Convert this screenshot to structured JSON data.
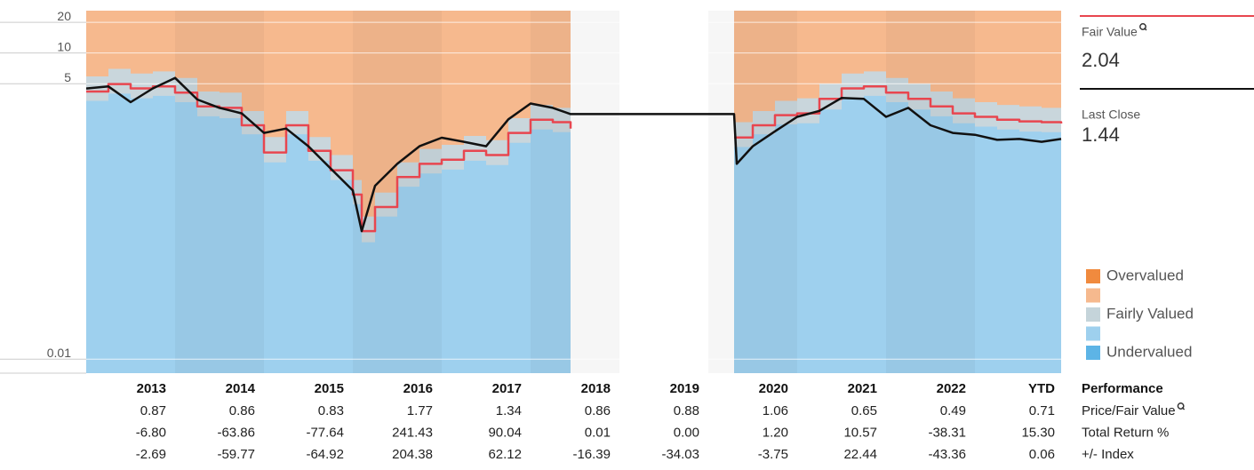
{
  "chart_data": {
    "type": "line",
    "log_scale": true,
    "grid": true,
    "x": [
      2013,
      2013.25,
      2013.5,
      2013.75,
      2014,
      2014.25,
      2014.5,
      2014.75,
      2015,
      2015.25,
      2015.5,
      2015.75,
      2016,
      2016.1,
      2016.25,
      2016.5,
      2016.75,
      2017,
      2017.25,
      2017.5,
      2017.75,
      2018,
      2018.25,
      2018.45,
      2019.4,
      2020.29,
      2020.32,
      2020.5,
      2020.75,
      2021,
      2021.25,
      2021.5,
      2021.75,
      2022,
      2022.25,
      2022.5,
      2022.75,
      2023,
      2023.25,
      2023.5,
      2023.75,
      2023.97
    ],
    "xlim": [
      2013,
      2024
    ],
    "ylim": [
      0.0073,
      26
    ],
    "yticks": [
      0.01,
      5,
      10,
      20
    ],
    "series": [
      {
        "name": "Fair Value",
        "color": "#e8464f",
        "step": true,
        "values": [
          4.2,
          4.97,
          4.5,
          4.7,
          4.1,
          3.0,
          2.9,
          1.96,
          1.06,
          1.96,
          1.1,
          0.71,
          0.41,
          0.18,
          0.31,
          0.61,
          0.82,
          0.9,
          1.1,
          1.0,
          1.65,
          2.22,
          2.1,
          1.82,
          null,
          1.49,
          1.49,
          1.96,
          2.46,
          2.56,
          3.55,
          4.5,
          4.7,
          4.1,
          3.55,
          3.0,
          2.56,
          2.37,
          2.22,
          2.14,
          2.1,
          2.04
        ]
      },
      {
        "name": "Last Close",
        "color": "#111111",
        "step": false,
        "values": [
          4.49,
          4.7,
          3.3,
          4.5,
          5.7,
          3.5,
          2.9,
          2.56,
          1.65,
          1.82,
          1.22,
          0.74,
          0.45,
          0.18,
          0.5,
          0.82,
          1.22,
          1.48,
          1.35,
          1.22,
          2.24,
          3.2,
          2.9,
          2.52,
          2.52,
          2.52,
          0.82,
          1.22,
          1.71,
          2.37,
          2.71,
          3.63,
          3.55,
          2.37,
          2.9,
          1.96,
          1.65,
          1.58,
          1.41,
          1.44,
          1.35,
          1.44
        ]
      }
    ],
    "overvalued_color": "#f6b98e",
    "bands": [
      {
        "color": "#c9d6dc",
        "values": [
          5.9,
          7.0,
          6.3,
          6.6,
          5.7,
          4.2,
          4.1,
          2.7,
          1.5,
          2.7,
          1.5,
          1.0,
          0.57,
          0.25,
          0.43,
          0.85,
          1.15,
          1.26,
          1.54,
          1.4,
          2.3,
          3.1,
          2.9,
          2.5,
          null,
          2.1,
          2.1,
          2.7,
          3.4,
          3.6,
          5.0,
          6.3,
          6.6,
          5.7,
          5.0,
          4.2,
          3.6,
          3.3,
          3.1,
          3.0,
          2.9,
          2.9
        ]
      },
      {
        "color": "#9ed0ee",
        "values": [
          3.4,
          4.0,
          3.6,
          3.8,
          3.3,
          2.4,
          2.3,
          1.6,
          0.85,
          1.6,
          0.88,
          0.57,
          0.33,
          0.14,
          0.25,
          0.49,
          0.66,
          0.72,
          0.88,
          0.8,
          1.32,
          1.78,
          1.68,
          1.46,
          null,
          1.2,
          1.2,
          1.6,
          2.0,
          2.05,
          2.8,
          3.6,
          3.8,
          3.3,
          2.8,
          2.4,
          2.05,
          1.9,
          1.78,
          1.7,
          1.68,
          1.63
        ]
      }
    ],
    "legend": [
      {
        "label": "Overvalued",
        "color": "#f08a3e"
      },
      {
        "label": null,
        "color": "#f6b98e"
      },
      {
        "label": "Fairly Valued",
        "color": "#c5d4da"
      },
      {
        "label": null,
        "color": "#9ed0ee"
      },
      {
        "label": "Undervalued",
        "color": "#5db4e6"
      }
    ]
  },
  "side_panel": {
    "fair_value": "2.04",
    "last_close": "1.44"
  },
  "table": {
    "header": "Performance",
    "columns": [
      "2013",
      "2014",
      "2015",
      "2016",
      "2017",
      "2018",
      "2019",
      "2020",
      "2021",
      "2022",
      "YTD"
    ],
    "rows": [
      {
        "label": "Price/Fair Value",
        "values": [
          "0.87",
          "0.86",
          "0.83",
          "1.77",
          "1.34",
          "0.86",
          "0.88",
          "1.06",
          "0.65",
          "0.49",
          "0.71"
        ]
      },
      {
        "label": "Total Return %",
        "values": [
          "-6.80",
          "-63.86",
          "-77.64",
          "241.43",
          "90.04",
          "0.01",
          "0.00",
          "1.20",
          "10.57",
          "-38.31",
          "15.30"
        ]
      },
      {
        "label": "+/- Index",
        "values": [
          "-2.69",
          "-59.77",
          "-64.92",
          "204.38",
          "62.12",
          "-16.39",
          "-34.03",
          "-3.75",
          "22.44",
          "-43.36",
          "0.06"
        ]
      }
    ]
  }
}
